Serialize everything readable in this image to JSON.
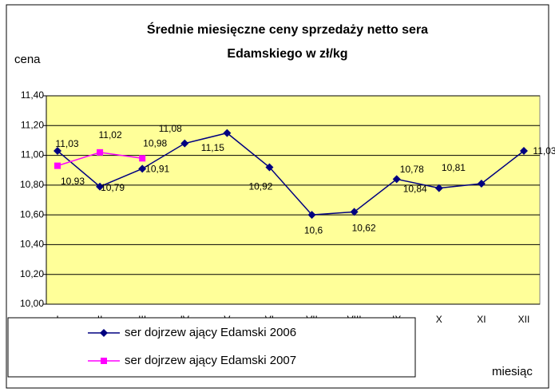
{
  "chart_data": {
    "type": "line",
    "title": [
      "Średnie miesięczne ceny sprzedaży netto sera",
      "Edamskiego w zł/kg"
    ],
    "y_label": "cena",
    "x_label": "miesiąc",
    "categories": [
      "I",
      "II",
      "III",
      "IV",
      "V",
      "VI",
      "VII",
      "VIII",
      "IX",
      "X",
      "XI",
      "XII"
    ],
    "series": [
      {
        "name": "ser dojrzew ający Edamski 2006",
        "color": "#000080",
        "values": [
          11.03,
          10.79,
          10.91,
          11.08,
          11.15,
          10.92,
          10.6,
          10.62,
          10.84,
          10.78,
          10.81,
          11.03
        ],
        "value_labels": [
          "11,03",
          "10,79",
          "10,91",
          "11,08",
          "11,15",
          "10,92",
          "10,6",
          "10,62",
          "10,84",
          "10,78",
          "10,81",
          "11,03"
        ]
      },
      {
        "name": "ser dojrzew ający Edamski 2007",
        "color": "#ff00ff",
        "values": [
          10.93,
          11.02,
          10.98,
          null,
          null,
          null,
          null,
          null,
          null,
          null,
          null,
          null
        ],
        "value_labels": [
          "10,93",
          "11,02",
          "10,98",
          null,
          null,
          null,
          null,
          null,
          null,
          null,
          null,
          null
        ]
      }
    ],
    "ylim": [
      10.0,
      11.4
    ],
    "yticks": [
      {
        "value": 10.0,
        "label": "10,00"
      },
      {
        "value": 10.2,
        "label": "10,20"
      },
      {
        "value": 10.4,
        "label": "10,40"
      },
      {
        "value": 10.6,
        "label": "10,60"
      },
      {
        "value": 10.8,
        "label": "10,80"
      },
      {
        "value": 11.0,
        "label": "11,00"
      },
      {
        "value": 11.2,
        "label": "11,20"
      },
      {
        "value": 11.4,
        "label": "11,40"
      }
    ],
    "grid": true,
    "plot_background": "#ffff99"
  }
}
